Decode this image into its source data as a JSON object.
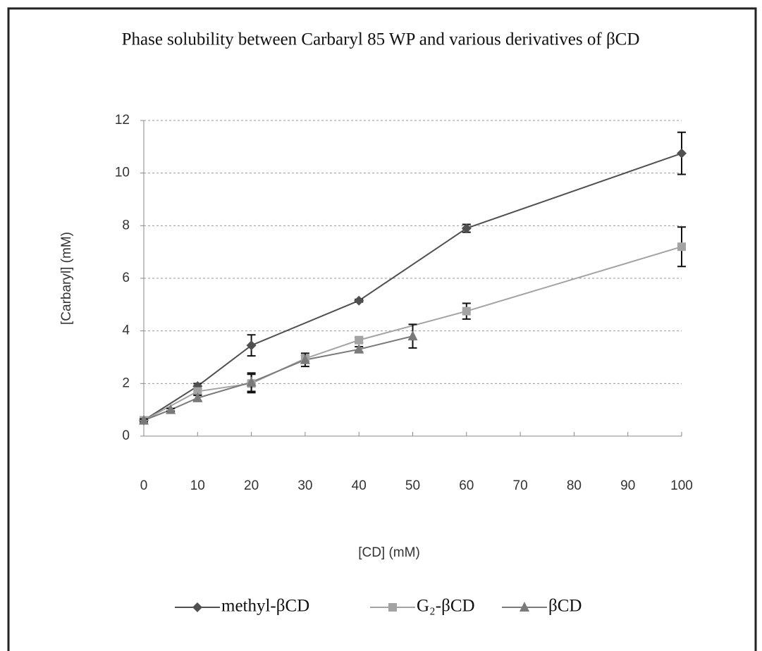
{
  "chart_data": {
    "type": "line",
    "title": "Phase solubility between Carbaryl 85 WP and various derivatives of βCD",
    "x_label": "[CD] (mM)",
    "y_label": "[Carbaryl] (mM)",
    "xlim": [
      0,
      100
    ],
    "xticks": [
      0,
      10,
      20,
      30,
      40,
      50,
      60,
      70,
      80,
      90,
      100
    ],
    "ylim": [
      0,
      12
    ],
    "yticks": [
      0,
      2,
      4,
      6,
      8,
      10,
      12
    ],
    "grid": true,
    "series": [
      {
        "name": "methyl-βCD",
        "color": "#505050",
        "marker": "diamond",
        "x": [
          0,
          10,
          20,
          40,
          60,
          100
        ],
        "values": [
          0.6,
          1.9,
          3.45,
          5.15,
          7.9,
          10.75
        ],
        "errors": [
          0.05,
          0.1,
          0.4,
          0.05,
          0.15,
          0.8
        ]
      },
      {
        "name": "G₂-βCD",
        "color": "#a3a3a3",
        "marker": "square",
        "x": [
          0,
          10,
          20,
          30,
          40,
          60,
          100
        ],
        "values": [
          0.6,
          1.7,
          2.0,
          2.95,
          3.65,
          4.75,
          7.2
        ],
        "errors": [
          0.05,
          0.1,
          0.35,
          0.1,
          0.1,
          0.3,
          0.75
        ]
      },
      {
        "name": "βCD",
        "color": "#7a7a7a",
        "marker": "triangle",
        "x": [
          0,
          5,
          10,
          20,
          30,
          40,
          50
        ],
        "values": [
          0.6,
          1.0,
          1.45,
          2.05,
          2.9,
          3.3,
          3.8
        ],
        "errors": [
          0.05,
          0.05,
          0.1,
          0.35,
          0.25,
          0.1,
          0.45
        ]
      }
    ]
  }
}
